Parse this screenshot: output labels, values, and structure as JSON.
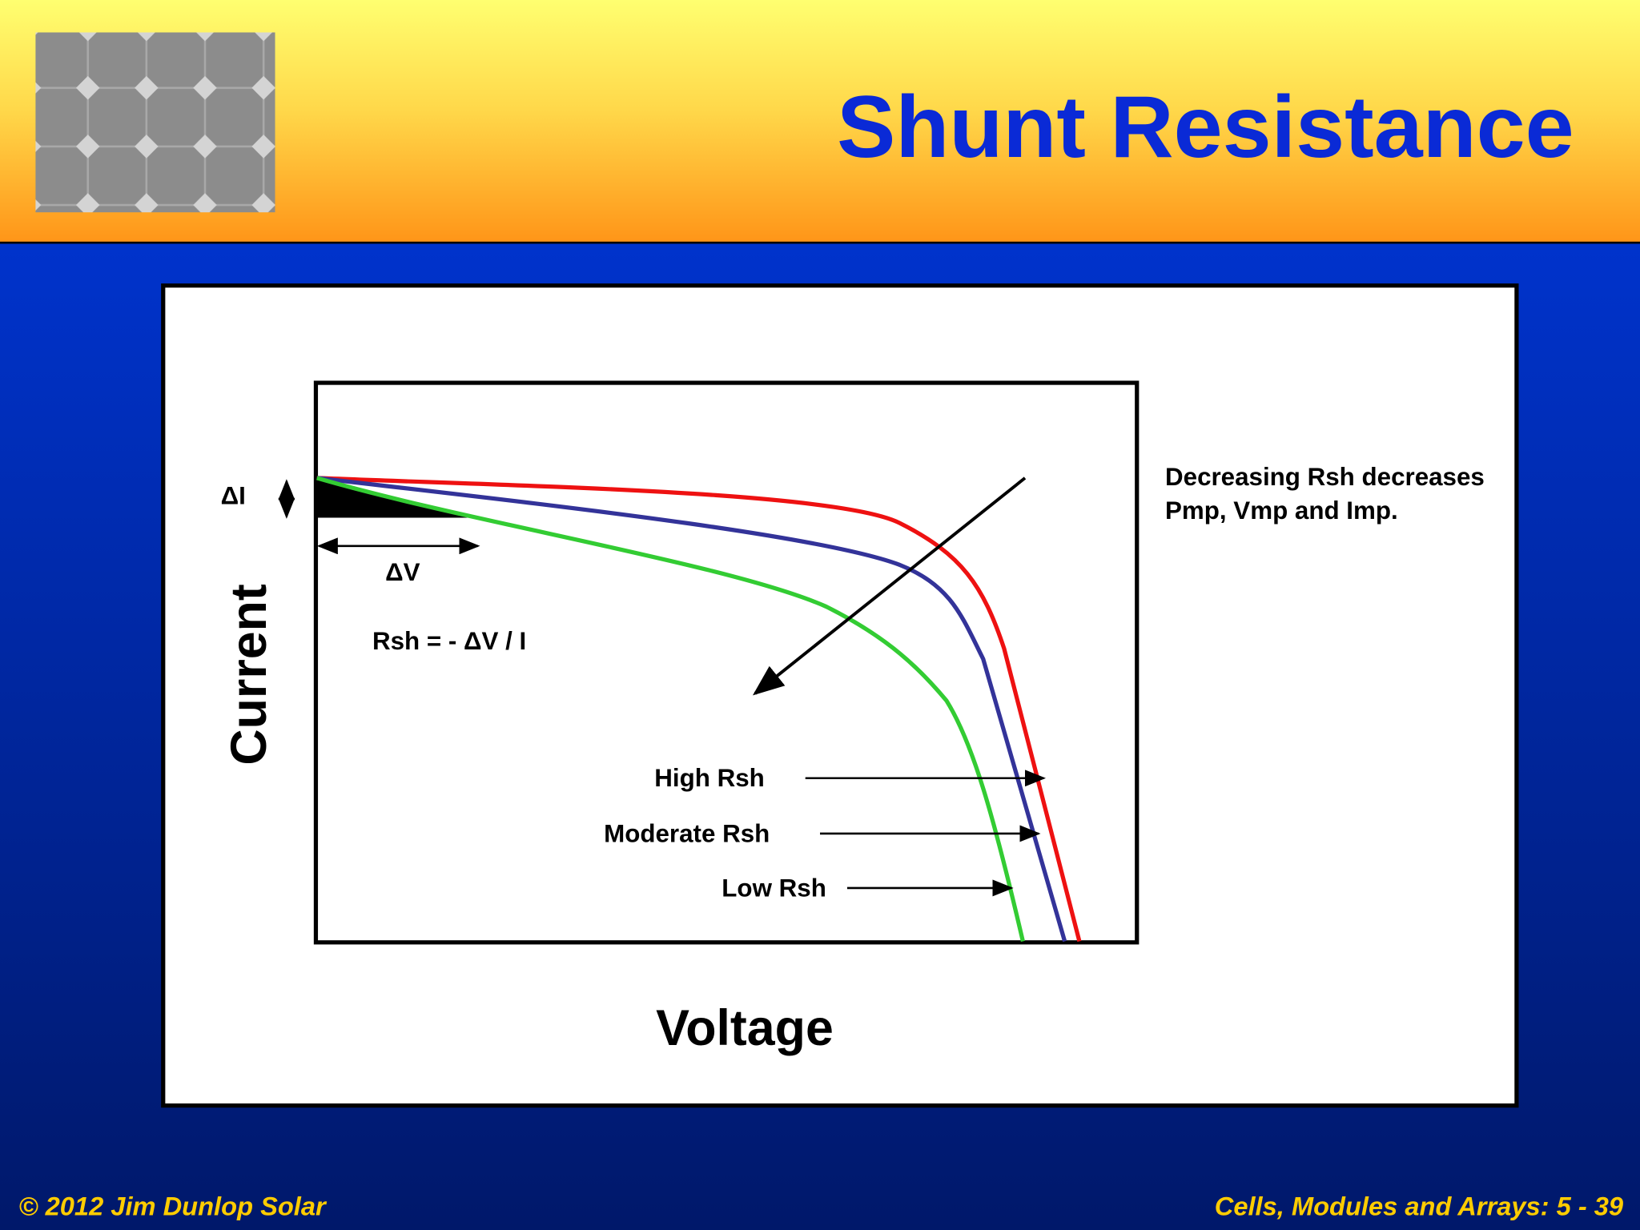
{
  "header": {
    "title": "Shunt Resistance"
  },
  "diagram": {
    "x_axis_label": "Voltage",
    "y_axis_label": "Current",
    "delta_i": "ΔI",
    "delta_v": "ΔV",
    "formula": "Rsh = - ΔV / I",
    "note": [
      "Decreasing Rsh decreases",
      "Pmp, Vmp and Imp."
    ],
    "curves": [
      {
        "label": "High Rsh"
      },
      {
        "label": "Moderate Rsh"
      },
      {
        "label": "Low Rsh"
      }
    ]
  },
  "footer": {
    "left": "© 2012 Jim Dunlop Solar",
    "right": "Cells, Modules and Arrays: 5 - 39"
  }
}
